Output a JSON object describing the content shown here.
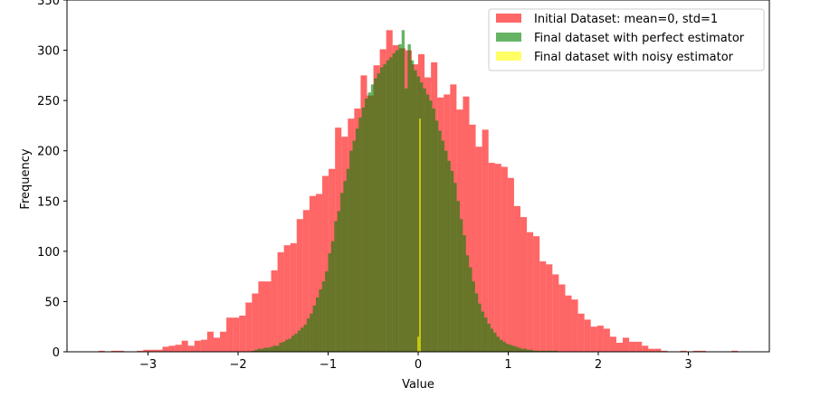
{
  "chart_data": {
    "type": "bar",
    "subtype": "histogram",
    "title": "",
    "xlabel": "Value",
    "ylabel": "Frequency",
    "xlim": [
      -3.9,
      3.9
    ],
    "ylim": [
      0,
      350
    ],
    "xticks": [
      -3,
      -2,
      -1,
      0,
      1,
      2,
      3
    ],
    "xtick_labels": [
      "−3",
      "−2",
      "−1",
      "0",
      "1",
      "2",
      "3"
    ],
    "yticks": [
      0,
      50,
      100,
      150,
      200,
      250,
      300,
      350
    ],
    "ytick_labels": [
      "0",
      "50",
      "100",
      "150",
      "200",
      "250",
      "300",
      "350"
    ],
    "grid": false,
    "legend_position": "top-right",
    "series": [
      {
        "name": "Initial Dataset: mean=0, std=1",
        "color": "#ff0000",
        "alpha": 0.6,
        "bin_start": -3.55,
        "bin_width": 0.071,
        "values": [
          1,
          0,
          1,
          1,
          0,
          0,
          1,
          2,
          2,
          2,
          5,
          6,
          7,
          11,
          6,
          11,
          12,
          20,
          14,
          20,
          34,
          34,
          36,
          49,
          58,
          70,
          70,
          81,
          99,
          106,
          108,
          132,
          141,
          155,
          157,
          175,
          182,
          223,
          214,
          232,
          242,
          275,
          255,
          285,
          301,
          320,
          305,
          302,
          300,
          286,
          296,
          273,
          288,
          253,
          256,
          266,
          241,
          254,
          226,
          204,
          221,
          188,
          187,
          184,
          173,
          145,
          134,
          119,
          115,
          90,
          87,
          77,
          67,
          56,
          52,
          38,
          32,
          25,
          26,
          23,
          15,
          9,
          14,
          10,
          10,
          6,
          3,
          3,
          1,
          0,
          0,
          1,
          0,
          1,
          1,
          0,
          0,
          0,
          0,
          1
        ]
      },
      {
        "name": "Final dataset with perfect estimator",
        "color": "#008000",
        "alpha": 0.6,
        "bin_start": -1.85,
        "bin_width": 0.034,
        "values": [
          1,
          2,
          3,
          3,
          4,
          4,
          5,
          6,
          6,
          9,
          10,
          12,
          13,
          16,
          18,
          21,
          24,
          27,
          33,
          38,
          46,
          54,
          62,
          70,
          80,
          98,
          110,
          130,
          140,
          158,
          170,
          182,
          200,
          210,
          222,
          233,
          243,
          252,
          258,
          266,
          272,
          277,
          283,
          286,
          290,
          293,
          297,
          300,
          306,
          320,
          262,
          306,
          290,
          280,
          274,
          268,
          262,
          256,
          250,
          242,
          230,
          220,
          210,
          200,
          190,
          180,
          168,
          150,
          132,
          116,
          96,
          84,
          70,
          58,
          48,
          40,
          34,
          28,
          23,
          19,
          15,
          12,
          10,
          8,
          7,
          6,
          5,
          4,
          3,
          3,
          2,
          2,
          1,
          1,
          1,
          1,
          1,
          1,
          1,
          1
        ]
      },
      {
        "name": "Final dataset with noisy estimator",
        "color": "#ffff00",
        "alpha": 0.6,
        "bin_start": -0.01,
        "bin_width": 0.02,
        "values": [
          15,
          232
        ]
      }
    ]
  }
}
